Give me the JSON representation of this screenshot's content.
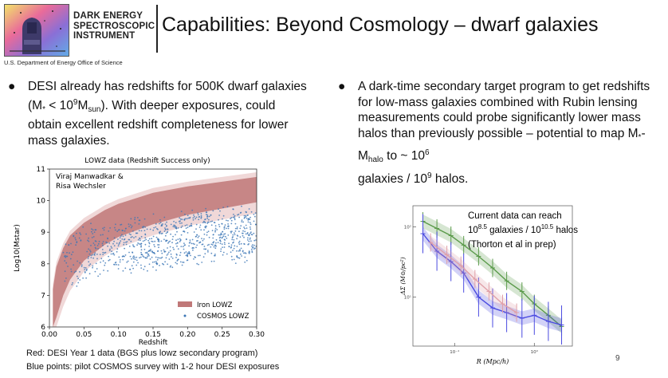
{
  "header": {
    "org_lines": [
      "DARK ENERGY",
      "SPECTROSCOPIC",
      "INSTRUMENT"
    ],
    "title": "Capabilities: Beyond Cosmology – dwarf galaxies",
    "agency": "U.S. Department of Energy Office of Science"
  },
  "bullets": {
    "left": {
      "part1": "DESI already has redshifts for 500K dwarf galaxies (M",
      "star": "*",
      "part2": " < 10",
      "sup_exp": "9",
      "part3": "M",
      "sub_sun": "sun",
      "part4": "). With deeper exposures, could obtain excellent redshift completeness for lower mass galaxies."
    },
    "right": {
      "part1": "A dark-time secondary target program to get redshifts for low-mass galaxies combined with Rubin lensing measurements could probe significantly lower mass halos than previously possible – potential to map M",
      "star": "*",
      "dash_m": "-M",
      "sub_halo": "halo",
      "part2": " to ~ 10",
      "sup1": "6",
      "part3": "galaxies / 10",
      "sup2": "9",
      "part4": " halos."
    }
  },
  "chart_data": [
    {
      "type": "scatter",
      "title": "LOWZ data (Redshift Success only)",
      "annotation": [
        "Viraj Manwadkar &",
        "Risa Wechsler"
      ],
      "xlabel": "Redshift",
      "ylabel": "Log10(Mstar)",
      "xlim": [
        0.0,
        0.3
      ],
      "ylim": [
        6,
        11
      ],
      "xticks": [
        "0.00",
        "0.05",
        "0.10",
        "0.15",
        "0.20",
        "0.25",
        "0.30"
      ],
      "yticks": [
        "6",
        "7",
        "8",
        "9",
        "10",
        "11"
      ],
      "legend": [
        "Iron LOWZ",
        "COSMOS LOWZ"
      ],
      "legend_position": "bottom-right",
      "series": [
        {
          "name": "Iron LOWZ",
          "kind": "band",
          "x": [
            0.005,
            0.01,
            0.02,
            0.03,
            0.05,
            0.08,
            0.1,
            0.15,
            0.2,
            0.25,
            0.3
          ],
          "lower": [
            6.0,
            6.3,
            7.0,
            7.5,
            8.1,
            8.6,
            8.85,
            9.25,
            9.55,
            9.75,
            9.95
          ],
          "upper": [
            7.2,
            7.9,
            8.5,
            8.9,
            9.3,
            9.7,
            9.9,
            10.25,
            10.45,
            10.6,
            10.75
          ]
        },
        {
          "name": "COSMOS LOWZ",
          "kind": "points",
          "count": 900,
          "x_range": [
            0.02,
            0.3
          ],
          "y_range": [
            6.8,
            10.2
          ]
        }
      ]
    },
    {
      "type": "line",
      "annotation": [
        "Current data can reach",
        "10",
        "8.5",
        " galaxies / 10",
        "10.5",
        " halos",
        "(Thorton et al in prep)"
      ],
      "xlabel": "R (Mpc/h)",
      "ylabel": "ΔΣ (M⊙/pc²)",
      "xscale": "log",
      "yscale": "log",
      "xlim": [
        0.03,
        3
      ],
      "xticks": [
        "10⁻¹",
        "10⁰"
      ],
      "yticks": [
        "10²",
        "10¹"
      ],
      "series": [
        {
          "name": "green",
          "color": "#5a9a4a",
          "x": [
            0.04,
            0.06,
            0.09,
            0.13,
            0.2,
            0.3,
            0.45,
            0.7,
            1.0,
            1.5,
            2.2
          ],
          "y": [
            120,
            95,
            75,
            55,
            38,
            26,
            17,
            12,
            8,
            5.5,
            3.8
          ]
        },
        {
          "name": "blue",
          "color": "#4a4ae0",
          "x": [
            0.04,
            0.06,
            0.09,
            0.13,
            0.2,
            0.3,
            0.45,
            0.7,
            1.0,
            1.5,
            2.2
          ],
          "y": [
            80,
            45,
            32,
            22,
            10,
            7,
            6,
            5,
            5.5,
            4.5,
            4
          ]
        },
        {
          "name": "pink",
          "color": "#e0a0a8",
          "x": [
            0.05,
            0.08,
            0.12,
            0.18,
            0.27,
            0.4,
            0.6
          ],
          "y": [
            60,
            40,
            28,
            18,
            12,
            8,
            6
          ]
        }
      ]
    }
  ],
  "captions": {
    "line1": "Red: DESI Year 1 data (BGS plus lowz secondary program)",
    "line2": "Blue points: pilot COSMOS survey with 1-2 hour DESI exposures"
  },
  "page_number": "9",
  "colors": {
    "band": "#c07878",
    "band_light": "#f0d8d8",
    "points": "#3b75b5",
    "green": "#5a9a4a",
    "blue": "#4a4ae0"
  }
}
